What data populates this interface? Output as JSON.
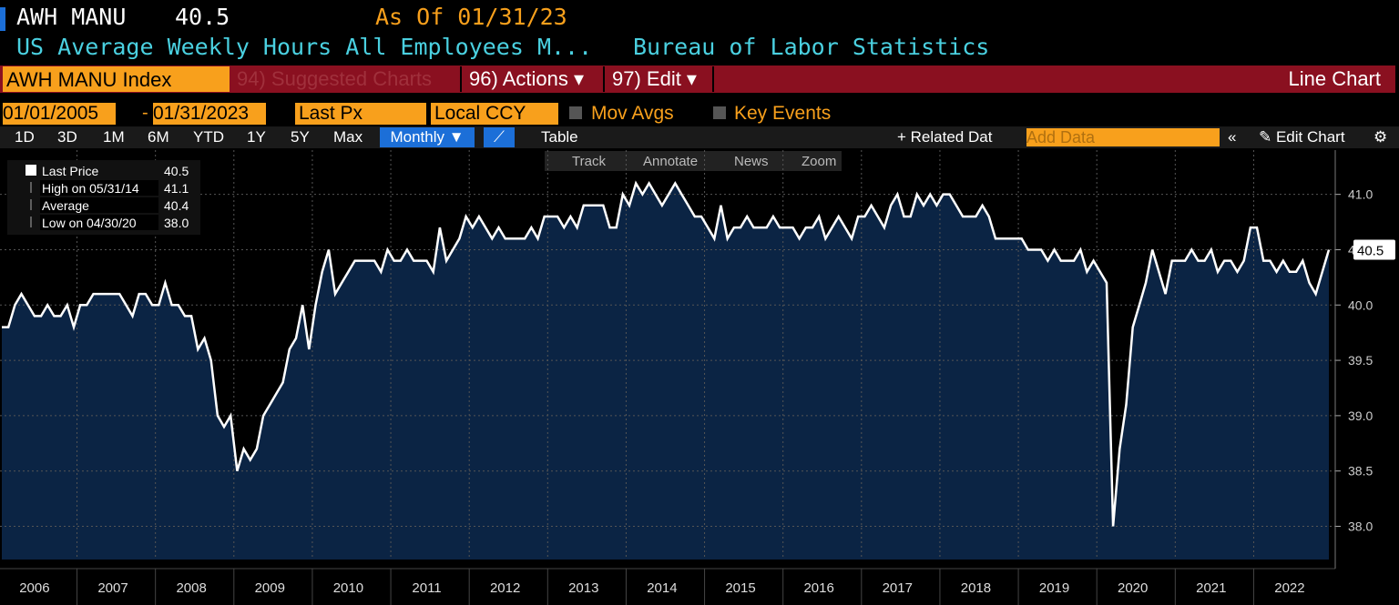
{
  "header": {
    "ticker": "AWH MANU",
    "price": "40.5",
    "as_of": "As Of 01/31/23",
    "description": "US Average Weekly Hours All Employees M...",
    "source": "Bureau of Labor Statistics"
  },
  "toolbar": {
    "security": "AWH MANU Index",
    "suggested": "94) Suggested Charts",
    "actions": "96) Actions ▾",
    "edit": "97) Edit ▾",
    "chart_type": "Line Chart",
    "start_date": "01/01/2005",
    "end_date": "01/31/2023",
    "field": "Last Px",
    "currency": "Local CCY",
    "mov_avgs": "Mov Avgs",
    "key_events": "Key Events",
    "periods": [
      "1D",
      "3D",
      "1M",
      "6M",
      "YTD",
      "1Y",
      "5Y",
      "Max"
    ],
    "frequency": "Monthly ▼",
    "table": "Table",
    "related": "+ Related Dat",
    "add_data": "Add Data",
    "edit_chart": "Edit Chart",
    "tools": [
      "Track",
      "Annotate",
      "News",
      "Zoom"
    ]
  },
  "chart_data": {
    "type": "line",
    "legend_rows": [
      {
        "label": "High on 05/31/14",
        "value": "41.1"
      },
      {
        "label": "Average",
        "value": "40.4"
      },
      {
        "label": "Low on 04/30/20",
        "value": "38.0"
      }
    ],
    "last_value": "40.5",
    "last_label": "40.5",
    "ylim": [
      37.7,
      41.4
    ],
    "yticks": [
      {
        "value": 38,
        "label": "38.0"
      },
      {
        "value": 38.5,
        "label": "38.5"
      },
      {
        "value": 39,
        "label": "39.0"
      },
      {
        "value": 39.5,
        "label": "39.5"
      },
      {
        "value": 40,
        "label": "40.0"
      },
      {
        "value": 40.5,
        "label": "40.5"
      },
      {
        "value": 41,
        "label": "41.0"
      }
    ],
    "grid": true,
    "categories": [
      null,
      null,
      null,
      null,
      null,
      "2006",
      null,
      null,
      null,
      null,
      null,
      null,
      null,
      null,
      null,
      null,
      null,
      "2007",
      null,
      null,
      null,
      null,
      null,
      null,
      null,
      null,
      null,
      null,
      null,
      "2008",
      null,
      null,
      null,
      null,
      null,
      null,
      null,
      null,
      null,
      null,
      null,
      "2009",
      null,
      null,
      null,
      null,
      null,
      null,
      null,
      null,
      null,
      null,
      null,
      "2010",
      null,
      null,
      null,
      null,
      null,
      null,
      null,
      null,
      null,
      null,
      null,
      "2011",
      null,
      null,
      null,
      null,
      null,
      null,
      null,
      null,
      null,
      null,
      null,
      "2012",
      null,
      null,
      null,
      null,
      null,
      null,
      null,
      null,
      null,
      null,
      null,
      "2013",
      null,
      null,
      null,
      null,
      null,
      null,
      null,
      null,
      null,
      null,
      null,
      "2014",
      null,
      null,
      null,
      null,
      null,
      null,
      null,
      null,
      null,
      null,
      null,
      "2015",
      null,
      null,
      null,
      null,
      null,
      null,
      null,
      null,
      null,
      null,
      null,
      "2016",
      null,
      null,
      null,
      null,
      null,
      null,
      null,
      null,
      null,
      null,
      null,
      "2017",
      null,
      null,
      null,
      null,
      null,
      null,
      null,
      null,
      null,
      null,
      null,
      "2018",
      null,
      null,
      null,
      null,
      null,
      null,
      null,
      null,
      null,
      null,
      null,
      "2019",
      null,
      null,
      null,
      null,
      null,
      null,
      null,
      null,
      null,
      null,
      null,
      "2020",
      null,
      null,
      null,
      null,
      null,
      null,
      null,
      null,
      null,
      null,
      null,
      "2021",
      null,
      null,
      null,
      null,
      null,
      null,
      null,
      null,
      null,
      null,
      null,
      "2022",
      null,
      null,
      null,
      null,
      null,
      null
    ],
    "series": [
      {
        "name": "Last Price",
        "color": "#ffffff",
        "values": [
          39.8,
          39.8,
          40.0,
          40.1,
          40.0,
          39.9,
          39.9,
          40.0,
          39.9,
          39.9,
          40.0,
          39.8,
          40.0,
          40.0,
          40.1,
          40.1,
          40.1,
          40.1,
          40.1,
          40.0,
          39.9,
          40.1,
          40.1,
          40.0,
          40.0,
          40.2,
          40.0,
          40.0,
          39.9,
          39.9,
          39.6,
          39.7,
          39.5,
          39.0,
          38.9,
          39.0,
          38.5,
          38.7,
          38.6,
          38.7,
          39.0,
          39.1,
          39.2,
          39.3,
          39.6,
          39.7,
          40.0,
          39.6,
          40.0,
          40.3,
          40.5,
          40.1,
          40.2,
          40.3,
          40.4,
          40.4,
          40.4,
          40.4,
          40.3,
          40.5,
          40.4,
          40.4,
          40.5,
          40.4,
          40.4,
          40.4,
          40.3,
          40.7,
          40.4,
          40.5,
          40.6,
          40.8,
          40.7,
          40.8,
          40.7,
          40.6,
          40.7,
          40.6,
          40.6,
          40.6,
          40.6,
          40.7,
          40.6,
          40.8,
          40.8,
          40.8,
          40.7,
          40.8,
          40.7,
          40.9,
          40.9,
          40.9,
          40.9,
          40.7,
          40.7,
          41.0,
          40.9,
          41.1,
          41.0,
          41.1,
          41.0,
          40.9,
          41.0,
          41.1,
          41.0,
          40.9,
          40.8,
          40.8,
          40.7,
          40.6,
          40.9,
          40.6,
          40.7,
          40.7,
          40.8,
          40.7,
          40.7,
          40.7,
          40.8,
          40.7,
          40.7,
          40.7,
          40.6,
          40.7,
          40.7,
          40.8,
          40.6,
          40.7,
          40.8,
          40.7,
          40.6,
          40.8,
          40.8,
          40.9,
          40.8,
          40.7,
          40.9,
          41.0,
          40.8,
          40.8,
          41.0,
          40.9,
          41.0,
          40.9,
          41.0,
          41.0,
          40.9,
          40.8,
          40.8,
          40.8,
          40.9,
          40.8,
          40.6,
          40.6,
          40.6,
          40.6,
          40.6,
          40.5,
          40.5,
          40.5,
          40.4,
          40.5,
          40.4,
          40.4,
          40.4,
          40.5,
          40.3,
          40.4,
          40.3,
          40.2,
          38.0,
          38.7,
          39.1,
          39.8,
          40.0,
          40.2,
          40.5,
          40.3,
          40.1,
          40.4,
          40.4,
          40.4,
          40.5,
          40.4,
          40.4,
          40.5,
          40.3,
          40.4,
          40.4,
          40.3,
          40.4,
          40.7,
          40.7,
          40.4,
          40.4,
          40.3,
          40.4,
          40.3,
          40.3,
          40.4,
          40.2,
          40.1,
          40.3,
          40.5
        ]
      }
    ]
  }
}
